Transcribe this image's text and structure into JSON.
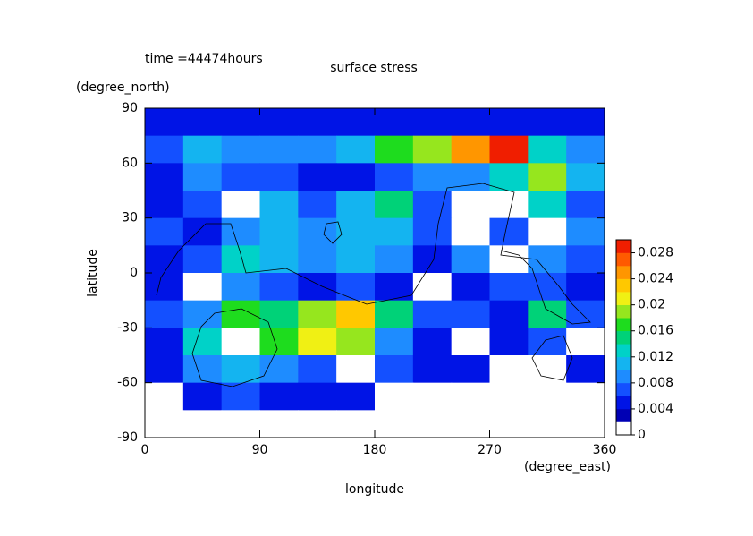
{
  "chart_data": {
    "type": "heatmap",
    "title": "surface stress",
    "subtitle": "time =44474hours",
    "x_label": "longitude",
    "x_unit": "(degree_east)",
    "y_label": "latitude",
    "y_unit": "(degree_north)",
    "xlim": [
      0,
      360
    ],
    "xticks": [
      0,
      90,
      180,
      270,
      360
    ],
    "ylim": [
      -90,
      90
    ],
    "yticks": [
      -90,
      -60,
      -30,
      0,
      30,
      60,
      90
    ],
    "x": [
      15,
      45,
      75,
      105,
      135,
      165,
      195,
      225,
      255,
      285,
      315,
      345
    ],
    "y": [
      82.5,
      67.5,
      52.5,
      37.5,
      22.5,
      7.5,
      -7.5,
      -22.5,
      -37.5,
      -52.5,
      -67.5,
      -82.5
    ],
    "z": [
      [
        0.004,
        0.004,
        0.004,
        0.004,
        0.004,
        0.005,
        0.005,
        0.005,
        0.005,
        0.005,
        0.004,
        0.004
      ],
      [
        0.006,
        0.01,
        0.008,
        0.008,
        0.008,
        0.01,
        0.016,
        0.018,
        0.024,
        0.028,
        0.012,
        0.008
      ],
      [
        0.005,
        0.008,
        0.006,
        0.006,
        0.005,
        0.004,
        0.006,
        0.008,
        0.008,
        0.012,
        0.018,
        0.01
      ],
      [
        0.005,
        0.006,
        0,
        0.01,
        0.006,
        0.01,
        0.014,
        0.006,
        0,
        0,
        0.012,
        0.006
      ],
      [
        0.006,
        0.005,
        0.008,
        0.01,
        0.008,
        0.01,
        0.01,
        0.006,
        0,
        0.006,
        0,
        0.008
      ],
      [
        0.005,
        0.006,
        0.012,
        0.01,
        0.008,
        0.01,
        0.008,
        0.005,
        0.008,
        0,
        0.008,
        0.006
      ],
      [
        0.004,
        0,
        0.008,
        0.006,
        0.005,
        0.006,
        0.005,
        0,
        0.004,
        0.006,
        0.006,
        0.004
      ],
      [
        0.006,
        0.008,
        0.016,
        0.014,
        0.018,
        0.022,
        0.014,
        0.006,
        0.006,
        0.004,
        0.014,
        0.006
      ],
      [
        0.004,
        0.012,
        0,
        0.016,
        0.02,
        0.018,
        0.008,
        0.004,
        0,
        0.004,
        0.006,
        0
      ],
      [
        0.005,
        0.008,
        0.01,
        0.008,
        0.006,
        0,
        0.006,
        0.004,
        0.004,
        0,
        0,
        0.004
      ],
      [
        0,
        0.004,
        0.006,
        0.004,
        0.004,
        0.004,
        0,
        0,
        0,
        0,
        0,
        0
      ],
      [
        0,
        0,
        0,
        0,
        0,
        0,
        0,
        0,
        0,
        0,
        0,
        0
      ]
    ],
    "levels": [
      0,
      0.002,
      0.004,
      0.006,
      0.008,
      0.01,
      0.012,
      0.014,
      0.016,
      0.018,
      0.02,
      0.022,
      0.024,
      0.026,
      0.028,
      0.03
    ],
    "colors": [
      "#ffffff",
      "#0000b4",
      "#0014e6",
      "#1450ff",
      "#1e8cff",
      "#14b4f0",
      "#00d2c8",
      "#00d278",
      "#1edc1e",
      "#96e61e",
      "#f0f014",
      "#ffc800",
      "#ff9600",
      "#ff5a00",
      "#f01e00"
    ],
    "cbar_ticks": [
      0,
      0.004,
      0.008,
      0.012,
      0.016,
      0.02,
      0.024,
      0.028
    ]
  }
}
